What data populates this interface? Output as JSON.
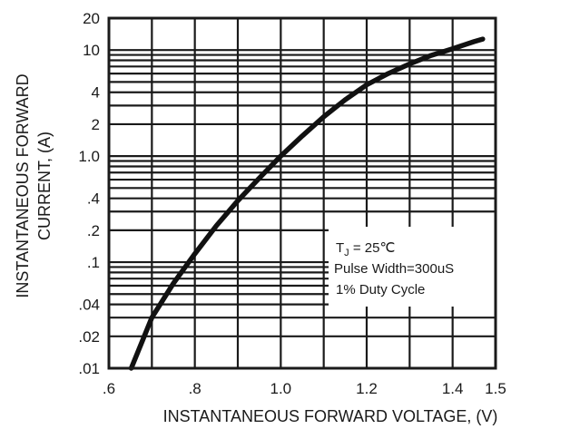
{
  "chart_data": {
    "type": "line",
    "title": "",
    "xlabel": "INSTANTANEOUS FORWARD VOLTAGE, (V)",
    "ylabel_lines": [
      "INSTANTANEOUS FORWARD",
      "CURRENT, (A)"
    ],
    "xlim": [
      0.6,
      1.5
    ],
    "ylim": [
      0.01,
      20
    ],
    "yscale": "log",
    "x_tick_labels": [
      ".6",
      ".8",
      "1.0",
      "1.2",
      "1.4",
      "1.5"
    ],
    "x_tick_values": [
      0.6,
      0.8,
      1.0,
      1.2,
      1.4,
      1.5
    ],
    "y_tick_labels": [
      ".01",
      ".02",
      ".04",
      ".1",
      ".2",
      ".4",
      "1.0",
      "2",
      "4",
      "10",
      "20"
    ],
    "y_tick_values": [
      0.01,
      0.02,
      0.04,
      0.1,
      0.2,
      0.4,
      1.0,
      2,
      4,
      10,
      20
    ],
    "grid": true,
    "series": [
      {
        "x": [
          0.652,
          0.7,
          0.75,
          0.8,
          0.85,
          0.9,
          0.95,
          1.0,
          1.05,
          1.1,
          1.15,
          1.2,
          1.25,
          1.3,
          1.35,
          1.4,
          1.45,
          1.47
        ],
        "y": [
          0.01,
          0.03,
          0.063,
          0.12,
          0.22,
          0.38,
          0.62,
          1.0,
          1.55,
          2.35,
          3.4,
          4.7,
          6.0,
          7.4,
          8.9,
          10.3,
          12.0,
          12.7
        ]
      }
    ],
    "annotation": {
      "lines": [
        "T",
        "J",
        " = 25",
        "℃",
        "Pulse Width=300uS",
        "1% Duty Cycle"
      ]
    }
  }
}
